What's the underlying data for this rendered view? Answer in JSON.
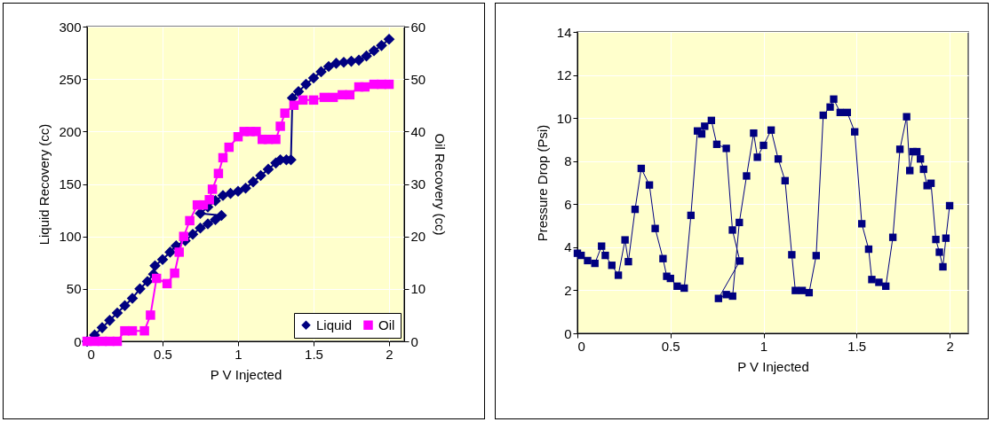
{
  "chart_data": [
    {
      "type": "line",
      "xlabel": "P V Injected",
      "ylabel": "Liquid Recovery (cc)",
      "y2label": "Oil Recovery (cc)",
      "xlim": [
        0,
        2.1
      ],
      "xticks": [
        0,
        0.5,
        1,
        1.5,
        2
      ],
      "ylim": [
        0,
        300
      ],
      "yticks": [
        0,
        50,
        100,
        150,
        200,
        250,
        300
      ],
      "y2lim": [
        0,
        60
      ],
      "y2ticks": [
        0,
        10,
        20,
        30,
        40,
        50,
        60
      ],
      "grid": true,
      "legend": "bottom right",
      "line_style": "solid",
      "series": [
        {
          "name": "Liquid",
          "color": "#000080",
          "marker": "diamond",
          "x": [
            0,
            0.05,
            0.1,
            0.15,
            0.2,
            0.25,
            0.3,
            0.35,
            0.4,
            0.44,
            0.45,
            0.5,
            0.55,
            0.59,
            0.65,
            0.7,
            0.75,
            0.8,
            0.85,
            0.89,
            0.75,
            0.8,
            0.85,
            0.9,
            0.95,
            1.0,
            1.05,
            1.1,
            1.15,
            1.2,
            1.25,
            1.28,
            1.32,
            1.35,
            1.36,
            1.4,
            1.45,
            1.5,
            1.55,
            1.6,
            1.65,
            1.7,
            1.75,
            1.8,
            1.85,
            1.9,
            1.95,
            2.0
          ],
          "values": [
            0,
            6,
            13,
            20,
            27,
            34,
            41,
            50,
            57,
            64,
            72,
            78,
            85,
            91,
            96,
            102,
            108,
            112,
            116,
            120,
            122,
            128,
            134,
            139,
            141,
            143,
            146,
            152,
            158,
            164,
            170,
            173,
            173,
            173,
            232,
            238,
            245,
            251,
            257,
            262,
            265,
            266,
            267,
            268,
            272,
            277,
            282,
            288
          ]
        },
        {
          "name": "Oil",
          "color": "#ff00ff",
          "marker": "square",
          "axis": "y2",
          "x": [
            0,
            0.05,
            0.1,
            0.15,
            0.2,
            0.25,
            0.3,
            0.38,
            0.42,
            0.46,
            0.53,
            0.58,
            0.61,
            0.64,
            0.68,
            0.73,
            0.77,
            0.81,
            0.83,
            0.87,
            0.9,
            0.94,
            1.0,
            1.04,
            1.08,
            1.12,
            1.16,
            1.2,
            1.25,
            1.28,
            1.31,
            1.37,
            1.43,
            1.5,
            1.57,
            1.63,
            1.69,
            1.74,
            1.8,
            1.84,
            1.9,
            1.95,
            2.0
          ],
          "values": [
            0,
            0,
            0,
            0,
            0,
            2,
            2,
            2,
            5,
            12,
            11,
            13,
            17,
            20,
            23,
            26,
            26,
            27,
            29,
            32,
            35,
            37,
            39,
            40,
            40,
            40,
            38.5,
            38.5,
            38.5,
            41,
            43.5,
            45,
            46,
            46,
            46.5,
            46.5,
            47,
            47,
            48.5,
            48.5,
            49,
            49,
            49
          ]
        }
      ]
    },
    {
      "type": "line",
      "xlabel": "P V Injected",
      "ylabel": "Pressure Drop (Psi)",
      "xlim": [
        0,
        2.1
      ],
      "xticks": [
        0,
        0.5,
        1,
        1.5,
        2
      ],
      "ylim": [
        0,
        14
      ],
      "yticks": [
        0,
        2,
        4,
        6,
        8,
        10,
        12,
        14
      ],
      "grid": true,
      "marker": "square",
      "line_style": "solid",
      "series": [
        {
          "color": "#000080",
          "x": [
            0,
            0.02,
            0.055,
            0.094,
            0.13,
            0.15,
            0.185,
            0.22,
            0.256,
            0.274,
            0.31,
            0.343,
            0.387,
            0.418,
            0.46,
            0.48,
            0.5,
            0.536,
            0.574,
            0.61,
            0.645,
            0.668,
            0.684,
            0.72,
            0.749,
            0.8,
            0.833,
            0.873,
            0.758,
            0.8,
            0.834,
            0.87,
            0.909,
            0.947,
            0.967,
            1.0,
            1.041,
            1.079,
            1.116,
            1.152,
            1.171,
            1.208,
            1.245,
            1.283,
            1.321,
            1.358,
            1.377,
            1.412,
            1.45,
            1.49,
            1.528,
            1.565,
            1.582,
            1.62,
            1.657,
            1.695,
            1.733,
            1.769,
            1.786,
            1.803,
            1.824,
            1.843,
            1.86,
            1.879,
            1.9,
            1.926,
            1.945,
            1.964,
            1.98,
            2.0
          ],
          "values": [
            3.72,
            3.62,
            3.38,
            3.25,
            4.05,
            3.62,
            3.16,
            2.7,
            4.34,
            3.33,
            5.76,
            7.66,
            6.89,
            4.87,
            3.47,
            2.65,
            2.55,
            2.19,
            2.1,
            5.48,
            9.4,
            9.26,
            9.62,
            9.89,
            8.78,
            8.59,
            4.8,
            3.36,
            1.62,
            1.8,
            1.73,
            5.15,
            7.31,
            9.3,
            8.18,
            8.73,
            9.44,
            8.1,
            7.09,
            3.65,
            1.99,
            1.99,
            1.89,
            3.61,
            10.13,
            10.51,
            10.88,
            10.26,
            10.26,
            9.36,
            5.09,
            3.91,
            2.5,
            2.37,
            2.19,
            4.46,
            8.55,
            10.06,
            7.56,
            8.44,
            8.44,
            8.1,
            7.62,
            6.86,
            6.97,
            4.36,
            3.77,
            3.09,
            4.42,
            5.93
          ]
        }
      ]
    }
  ]
}
